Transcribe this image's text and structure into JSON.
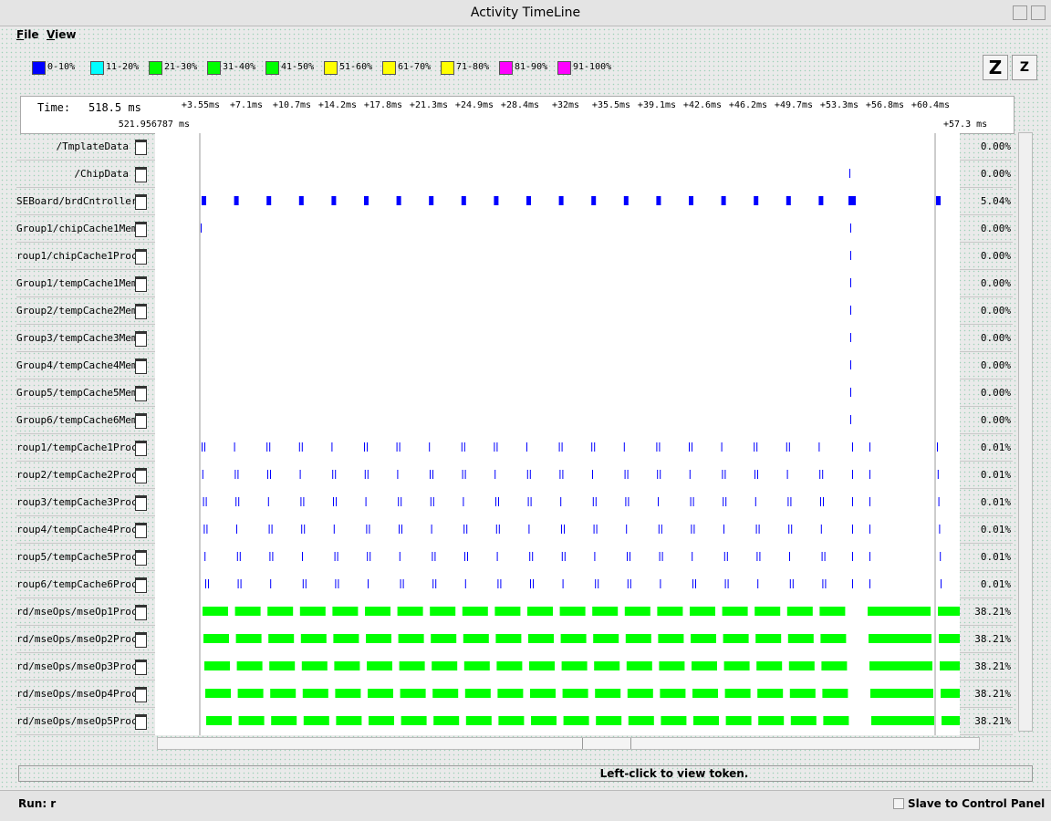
{
  "window": {
    "title": "Activity TimeLine"
  },
  "menu": [
    "File",
    "View"
  ],
  "legend": [
    {
      "label": "0-10%",
      "color": "#0000ff"
    },
    {
      "label": "11-20%",
      "color": "#00ffff"
    },
    {
      "label": "21-30%",
      "color": "#00ff00"
    },
    {
      "label": "31-40%",
      "color": "#00ff00"
    },
    {
      "label": "41-50%",
      "color": "#00ff00"
    },
    {
      "label": "51-60%",
      "color": "#ffff00"
    },
    {
      "label": "61-70%",
      "color": "#ffff00"
    },
    {
      "label": "71-80%",
      "color": "#ffff00"
    },
    {
      "label": "81-90%",
      "color": "#ff00ff"
    },
    {
      "label": "91-100%",
      "color": "#ff00ff"
    }
  ],
  "zoom": [
    "Z",
    "Z"
  ],
  "timeline": {
    "time_label": "Time:",
    "time_value": "518.5 ms",
    "ticks": [
      "+3.55ms",
      "+7.1ms",
      "+10.7ms",
      "+14.2ms",
      "+17.8ms",
      "+21.3ms",
      "+24.9ms",
      "+28.4ms",
      "+32ms",
      "+35.5ms",
      "+39.1ms",
      "+42.6ms",
      "+46.2ms",
      "+49.7ms",
      "+53.3ms",
      "+56.8ms",
      "+60.4ms"
    ],
    "start": "521.956787 ms",
    "end": "+57.3 ms"
  },
  "rows": [
    {
      "name": "/TmplateData",
      "pct": "0.00%"
    },
    {
      "name": "/ChipData",
      "pct": "0.00%"
    },
    {
      "name": "SEBoard/brdCntroller",
      "pct": "5.04%"
    },
    {
      "name": "Group1/chipCache1Mem",
      "pct": "0.00%"
    },
    {
      "name": "roup1/chipCache1Proc",
      "pct": "0.00%"
    },
    {
      "name": "Group1/tempCache1Mem",
      "pct": "0.00%"
    },
    {
      "name": "Group2/tempCache2Mem",
      "pct": "0.00%"
    },
    {
      "name": "Group3/tempCache3Mem",
      "pct": "0.00%"
    },
    {
      "name": "Group4/tempCache4Mem",
      "pct": "0.00%"
    },
    {
      "name": "Group5/tempCache5Mem",
      "pct": "0.00%"
    },
    {
      "name": "Group6/tempCache6Mem",
      "pct": "0.00%"
    },
    {
      "name": "roup1/tempCache1Proc",
      "pct": "0.01%"
    },
    {
      "name": "roup2/tempCache2Proc",
      "pct": "0.01%"
    },
    {
      "name": "roup3/tempCache3Proc",
      "pct": "0.01%"
    },
    {
      "name": "roup4/tempCache4Proc",
      "pct": "0.01%"
    },
    {
      "name": "roup5/tempCache5Proc",
      "pct": "0.01%"
    },
    {
      "name": "roup6/tempCache6Proc",
      "pct": "0.01%"
    },
    {
      "name": "rd/mseOps/mseOp1Proc",
      "pct": "38.21%"
    },
    {
      "name": "rd/mseOps/mseOp2Proc",
      "pct": "38.21%"
    },
    {
      "name": "rd/mseOps/mseOp3Proc",
      "pct": "38.21%"
    },
    {
      "name": "rd/mseOps/mseOp4Proc",
      "pct": "38.21%"
    },
    {
      "name": "rd/mseOps/mseOp5Proc",
      "pct": "38.21%"
    }
  ],
  "status": "Left-click to view token.",
  "footer": {
    "run": "Run: r",
    "slave": "Slave to Control Panel"
  }
}
